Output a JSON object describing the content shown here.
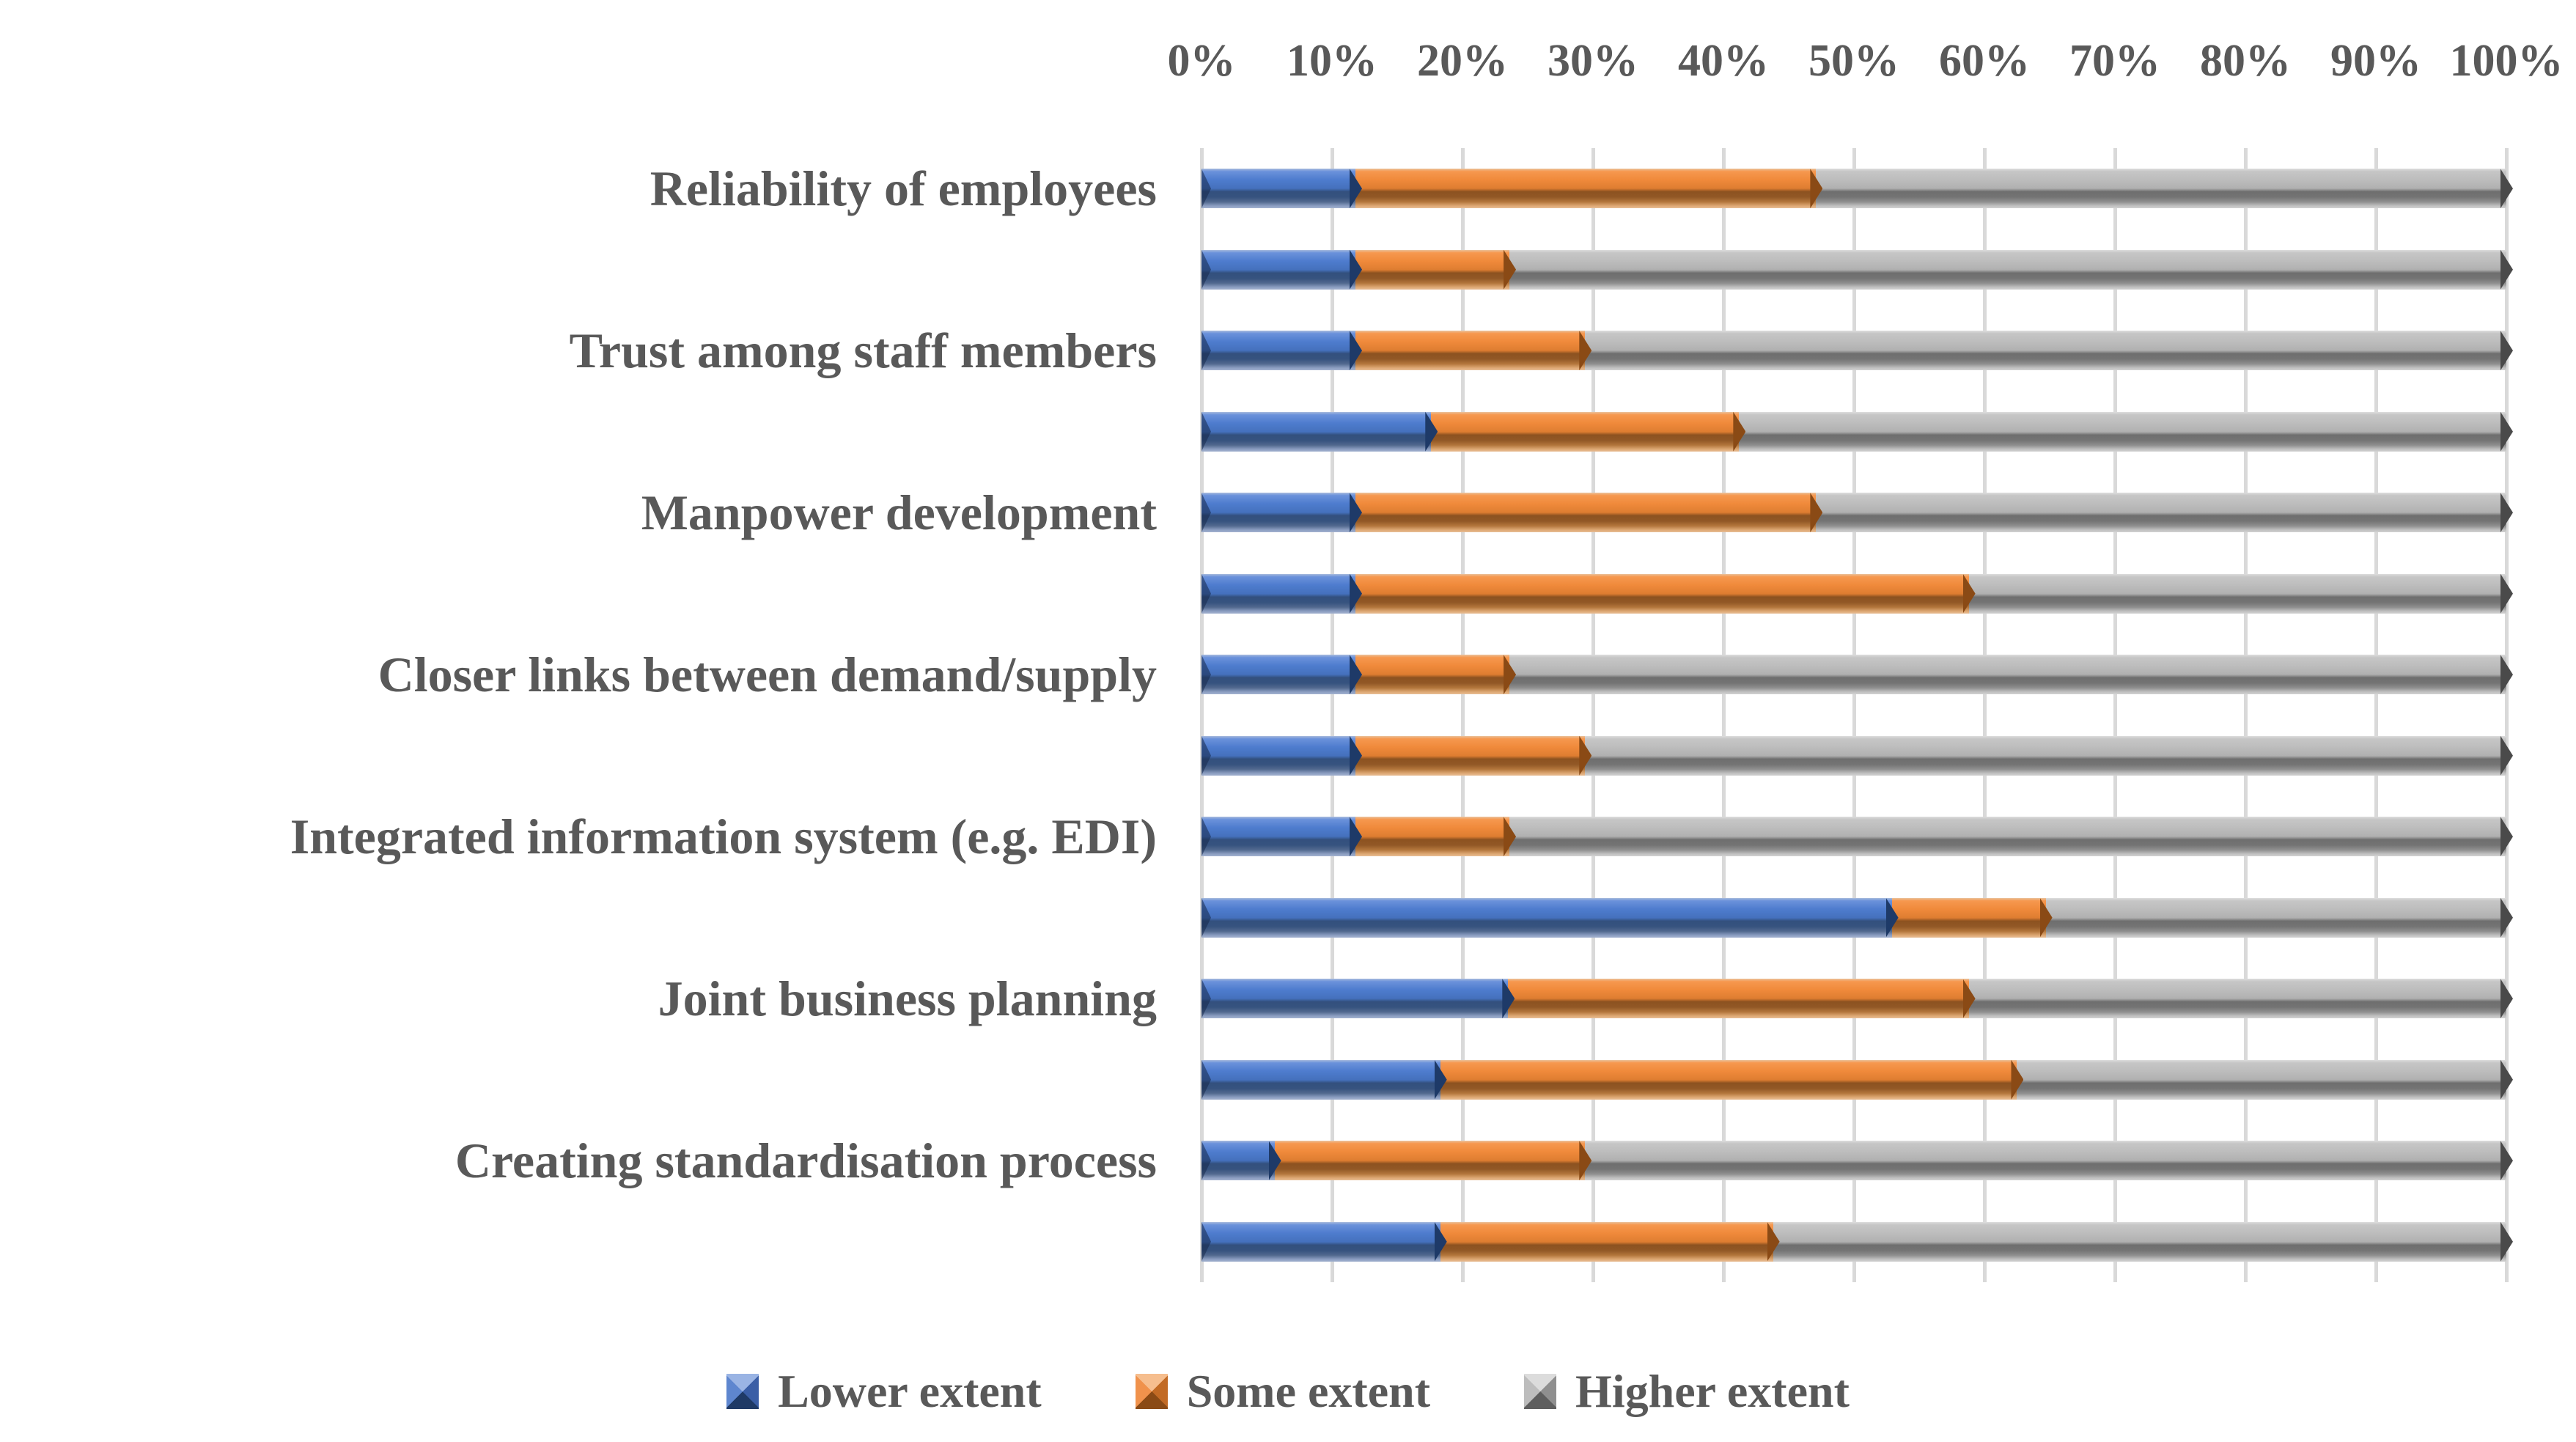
{
  "chart_data": {
    "type": "bar",
    "orientation": "horizontal",
    "stacked_percent": true,
    "title": "",
    "x_axis": {
      "position": "top",
      "min": 0,
      "max": 100,
      "unit": "%",
      "grid": true,
      "ticks": [
        "0%",
        "10%",
        "20%",
        "30%",
        "40%",
        "50%",
        "60%",
        "70%",
        "80%",
        "90%",
        "100%"
      ]
    },
    "series": [
      {
        "name": "Lower extent",
        "color": "#4472C4"
      },
      {
        "name": "Some extent",
        "color": "#ED7D31"
      },
      {
        "name": "Higher extent",
        "color": "#A5A5A5"
      }
    ],
    "categories": [
      "Reliability of employees",
      "Trust among staff members",
      "Manpower development",
      "Closer links between demand/supply",
      "Integrated information system (e.g. EDI)",
      "Joint business planning",
      "Creating standardisation process"
    ],
    "rows": [
      {
        "label": "Reliability of employees",
        "lower": 11.8,
        "some": 35.3,
        "higher": 52.9
      },
      {
        "label": "",
        "lower": 11.8,
        "some": 11.8,
        "higher": 76.4
      },
      {
        "label": "Trust among staff members",
        "lower": 11.8,
        "some": 17.6,
        "higher": 70.6
      },
      {
        "label": "",
        "lower": 17.6,
        "some": 23.6,
        "higher": 58.8
      },
      {
        "label": "Manpower development",
        "lower": 11.8,
        "some": 35.3,
        "higher": 52.9
      },
      {
        "label": "",
        "lower": 11.8,
        "some": 47.0,
        "higher": 41.2
      },
      {
        "label": "Closer links between demand/supply",
        "lower": 11.8,
        "some": 11.8,
        "higher": 76.4
      },
      {
        "label": "",
        "lower": 11.8,
        "some": 17.6,
        "higher": 70.6
      },
      {
        "label": "Integrated information system (e.g. EDI)",
        "lower": 11.8,
        "some": 11.8,
        "higher": 76.4
      },
      {
        "label": "",
        "lower": 52.9,
        "some": 11.8,
        "higher": 35.3
      },
      {
        "label": "Joint business planning",
        "lower": 23.5,
        "some": 35.3,
        "higher": 41.2
      },
      {
        "label": "",
        "lower": 18.3,
        "some": 44.2,
        "higher": 37.5
      },
      {
        "label": "Creating standardisation process",
        "lower": 5.6,
        "some": 23.8,
        "higher": 70.6
      },
      {
        "label": "",
        "lower": 18.3,
        "some": 25.5,
        "higher": 56.2
      }
    ],
    "legend": {
      "position": "bottom",
      "items": [
        "Lower extent",
        "Some extent",
        "Higher extent"
      ]
    },
    "colors": {
      "lower": "#4472C4",
      "some": "#ED7D31",
      "higher": "#A5A5A5",
      "text": "#595959",
      "gridline": "#D9D9D9"
    }
  }
}
